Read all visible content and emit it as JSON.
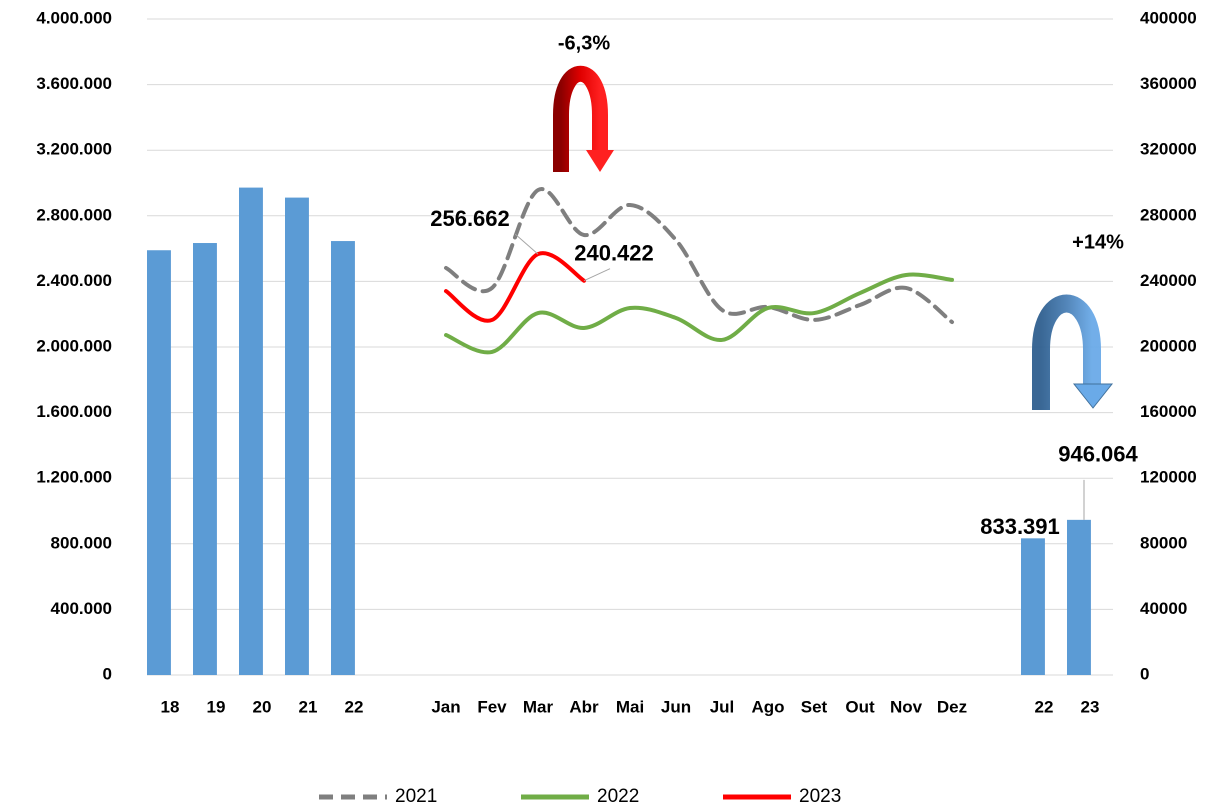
{
  "chart_data": {
    "type": "combo",
    "categories": [
      "18",
      "19",
      "20",
      "21",
      "22",
      null,
      "Jan",
      "Fev",
      "Mar",
      "Abr",
      "Mai",
      "Jun",
      "Jul",
      "Ago",
      "Set",
      "Out",
      "Nov",
      "Dez",
      null,
      "22",
      "23"
    ],
    "ylim": [
      0,
      4000000
    ],
    "yticks": [
      {
        "value": 0,
        "label": "0"
      },
      {
        "value": 400000,
        "label": "400.000"
      },
      {
        "value": 800000,
        "label": "800.000"
      },
      {
        "value": 1200000,
        "label": "1.200.000"
      },
      {
        "value": 1600000,
        "label": "1.600.000"
      },
      {
        "value": 2000000,
        "label": "2.000.000"
      },
      {
        "value": 2400000,
        "label": "2.400.000"
      },
      {
        "value": 2800000,
        "label": "2.800.000"
      },
      {
        "value": 3200000,
        "label": "3.200.000"
      },
      {
        "value": 3600000,
        "label": "3.600.000"
      },
      {
        "value": 4000000,
        "label": "4.000.000"
      }
    ],
    "y2lim": [
      0,
      400000
    ],
    "y2ticks": [
      0,
      40000,
      80000,
      120000,
      160000,
      200000,
      240000,
      280000,
      320000,
      360000,
      400000
    ],
    "grid": true,
    "legend": "bottom",
    "series": [
      {
        "type": "bar",
        "color": "#5b9bd5",
        "values": [
          2590000,
          2634000,
          2972000,
          2911000,
          2646000,
          null,
          null,
          null,
          null,
          null,
          null,
          null,
          null,
          null,
          null,
          null,
          null,
          null,
          null,
          833391,
          946064
        ],
        "value_labels": [
          null,
          null,
          null,
          null,
          null,
          null,
          null,
          null,
          null,
          null,
          null,
          null,
          null,
          null,
          null,
          null,
          null,
          null,
          null,
          "833.391",
          "946.064"
        ]
      },
      {
        "type": "line",
        "name": "2021",
        "color": "#7f7f7f",
        "dashed": true,
        "axis": "y2",
        "values": [
          null,
          null,
          null,
          null,
          null,
          null,
          248200,
          236000,
          295700,
          268300,
          286600,
          265200,
          222600,
          224400,
          216500,
          225600,
          236000,
          215200,
          null,
          null,
          null
        ]
      },
      {
        "type": "line",
        "name": "2022",
        "color": "#70ad47",
        "axis": "y2",
        "values": [
          null,
          null,
          null,
          null,
          null,
          null,
          207300,
          197000,
          220700,
          211600,
          223800,
          217700,
          204300,
          223800,
          220700,
          232900,
          243900,
          240900,
          null,
          null,
          null
        ]
      },
      {
        "type": "line",
        "name": "2023",
        "color": "#ff0000",
        "axis": "y2",
        "values": [
          null,
          null,
          null,
          null,
          null,
          null,
          234100,
          216500,
          256662,
          240422,
          null,
          null,
          null,
          null,
          null,
          null,
          null,
          null,
          null,
          null,
          null
        ],
        "value_labels": [
          null,
          null,
          null,
          null,
          null,
          null,
          null,
          null,
          "256.662",
          "240.422",
          null,
          null,
          null,
          null,
          null,
          null,
          null,
          null,
          null,
          null,
          null
        ]
      }
    ],
    "annotations": [
      "-6,3%",
      "+14%"
    ]
  }
}
